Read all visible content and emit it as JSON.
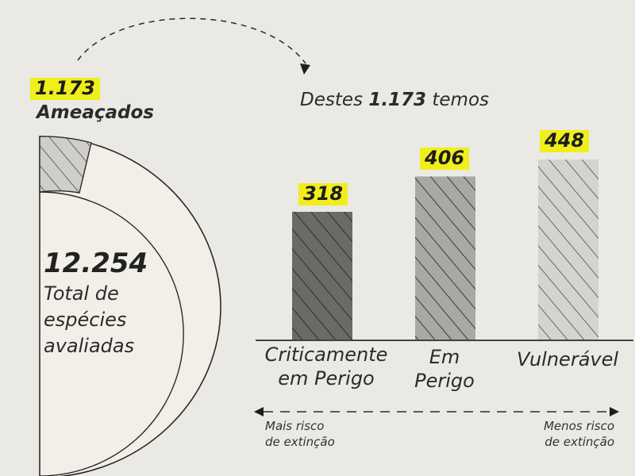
{
  "colors": {
    "background": "#ebe9e3",
    "highlight": "#f0ee1b",
    "circle_fill": "#f1efe8",
    "outline": "#2a2a2a",
    "bar_critical": "#6a6a66",
    "bar_endangered": "#a9a8a3",
    "bar_vulnerable": "#d4d3cd"
  },
  "left": {
    "threatened_value": "1.173",
    "threatened_label": "Ameaçados",
    "total_value": "12.254",
    "total_label_lines": [
      "Total de",
      "espécies",
      "avaliadas"
    ]
  },
  "chart_data": {
    "type": "bar",
    "title_parts": [
      "Destes",
      "1.173",
      "temos"
    ],
    "categories": [
      "Criticamente em Perigo",
      "Em Perigo",
      "Vulnerável"
    ],
    "category_lines": [
      [
        "Criticamente",
        "em Perigo"
      ],
      [
        "Em",
        "Perigo"
      ],
      [
        "Vulnerável"
      ]
    ],
    "values": [
      318,
      406,
      448
    ],
    "value_labels": [
      "318",
      "406",
      "448"
    ],
    "axis": {
      "left_label_lines": [
        "Mais risco",
        "de extinção"
      ],
      "right_label_lines": [
        "Menos risco",
        "de extinção"
      ]
    }
  }
}
